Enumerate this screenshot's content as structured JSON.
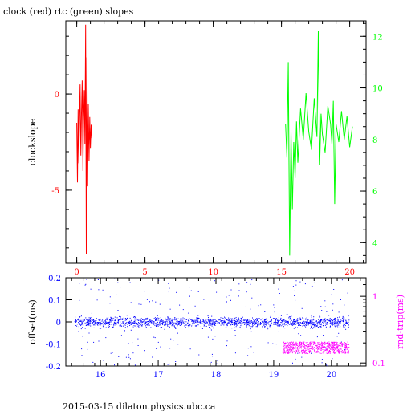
{
  "title": "clock (red) rtc (green) slopes",
  "footer": "2015-03-15 dilaton.physics.ubc.ca",
  "colors": {
    "clock": "#ff0000",
    "rtc": "#00ff00",
    "offset": "#0000ff",
    "rnd_trip": "#ff00ff",
    "axis": "#000000"
  },
  "chart_data": [
    {
      "type": "line",
      "title": "clock (red) rtc (green) slopes",
      "xlim": [
        -0.8,
        21.2
      ],
      "x_ticks": [
        0,
        5,
        10,
        15,
        20
      ],
      "x_tick_labels": [
        "0",
        "5",
        "10",
        "15",
        "20"
      ],
      "ylabel": "clockslope",
      "ylim": [
        -8.8,
        3.8
      ],
      "y_ticks": [
        -5,
        0
      ],
      "y_tick_labels": [
        "-5",
        "0"
      ],
      "y2label": "",
      "y2lim": [
        3.2,
        12.6
      ],
      "y2_ticks": [
        4,
        6,
        8,
        10,
        12
      ],
      "y2_tick_labels": [
        "4",
        "6",
        "8",
        "10",
        "12"
      ],
      "series": [
        {
          "name": "clock",
          "axis": "left",
          "x": [
            0.0,
            0.05,
            0.1,
            0.15,
            0.2,
            0.25,
            0.3,
            0.35,
            0.4,
            0.45,
            0.5,
            0.55,
            0.6,
            0.65,
            0.7,
            0.75,
            0.8,
            0.85,
            0.9,
            0.95,
            1.0,
            1.05,
            1.1
          ],
          "y": [
            -1.5,
            -4.6,
            -0.8,
            -3.6,
            -1.2,
            0.5,
            -3.2,
            -1.0,
            0.7,
            -4.0,
            -1.3,
            0.2,
            -2.6,
            3.6,
            -8.3,
            1.9,
            -4.8,
            -0.5,
            -3.5,
            -1.2,
            -2.8,
            -1.6,
            -2.3
          ]
        },
        {
          "name": "rtc",
          "axis": "right",
          "x": [
            15.3,
            15.4,
            15.5,
            15.6,
            15.7,
            15.8,
            15.9,
            16.0,
            16.1,
            16.2,
            16.4,
            16.6,
            16.8,
            17.0,
            17.2,
            17.4,
            17.6,
            17.7,
            17.8,
            17.9,
            18.0,
            18.2,
            18.4,
            18.6,
            18.7,
            18.8,
            18.9,
            19.0,
            19.2,
            19.4,
            19.6,
            19.8,
            20.0,
            20.2
          ],
          "y": [
            8.6,
            7.3,
            11.0,
            3.5,
            8.3,
            5.3,
            7.9,
            6.5,
            8.7,
            7.1,
            9.2,
            8.0,
            9.8,
            8.3,
            7.6,
            9.6,
            8.1,
            12.2,
            7.0,
            9.0,
            8.2,
            7.5,
            9.3,
            8.6,
            7.8,
            9.5,
            5.5,
            8.6,
            7.9,
            9.1,
            8.0,
            8.9,
            7.7,
            8.5
          ]
        }
      ]
    },
    {
      "type": "scatter",
      "title": "",
      "xlim": [
        15.4,
        20.6
      ],
      "x_ticks": [
        16,
        17,
        18,
        19,
        20
      ],
      "x_tick_labels": [
        "16",
        "17",
        "18",
        "19",
        "20"
      ],
      "ylabel": "offset(ms)",
      "ylim": [
        -0.2,
        0.2
      ],
      "y_ticks": [
        -0.2,
        -0.1,
        0,
        0.1,
        0.2
      ],
      "y_tick_labels": [
        "-0.2",
        "-0.1",
        "0",
        "0.1",
        "0.2"
      ],
      "y2label": "rnd-trip(ms)",
      "y2_scale": "log",
      "y2lim": [
        0.09,
        1.9
      ],
      "y2_ticks": [
        0.1,
        1
      ],
      "y2_tick_labels": [
        "0.1",
        "1"
      ],
      "series": [
        {
          "name": "offset",
          "axis": "left",
          "x_range": [
            15.55,
            20.3
          ],
          "y_center": 0.0,
          "y_spread": 0.2,
          "points": 1800
        },
        {
          "name": "rnd-trip",
          "axis": "right",
          "x_range": [
            19.15,
            20.3
          ],
          "y_range": [
            0.14,
            0.21
          ],
          "points": 700
        }
      ]
    }
  ]
}
